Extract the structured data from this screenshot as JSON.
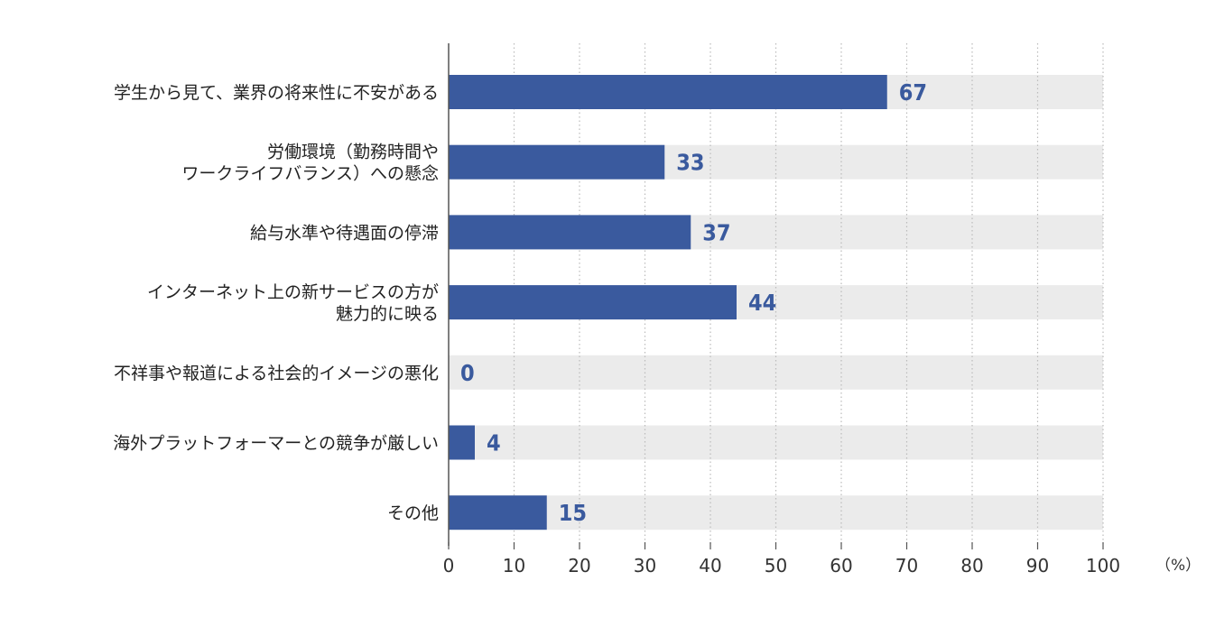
{
  "chart_data": {
    "type": "bar",
    "orientation": "horizontal",
    "categories": [
      [
        "学生から見て、業界の将来性に不安がある"
      ],
      [
        "労働環境（勤務時間や",
        "ワークライフバランス）への懸念"
      ],
      [
        "給与水準や待遇面の停滞"
      ],
      [
        "インターネット上の新サービスの方が",
        "魅力的に映る"
      ],
      [
        "不祥事や報道による社会的イメージの悪化"
      ],
      [
        "海外プラットフォーマーとの競争が厳しい"
      ],
      [
        "その他"
      ]
    ],
    "values": [
      67,
      33,
      37,
      44,
      0,
      4,
      15
    ],
    "xlim": [
      0,
      100
    ],
    "xticks": [
      0,
      10,
      20,
      30,
      40,
      50,
      60,
      70,
      80,
      90,
      100
    ],
    "unit": "（%）",
    "grid": "vertical-dotted",
    "legend": "none",
    "colors": {
      "bar": "#3a5a9e",
      "track": "#ebebeb",
      "value_text": "#3a5a9e",
      "grid": "#bbbbbb",
      "axis": "#555555"
    }
  }
}
